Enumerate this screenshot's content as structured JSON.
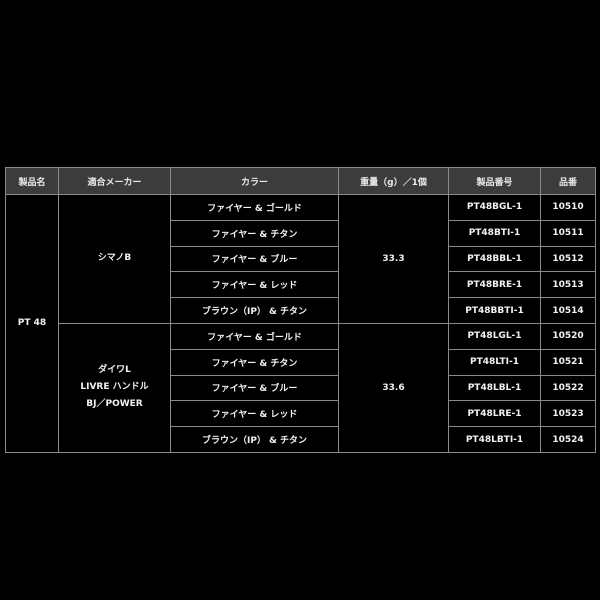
{
  "headers": [
    "製品名",
    "適合メーカー",
    "カラー",
    "重量（g）／1個",
    "製品番号",
    "品番"
  ],
  "product_name": "PT 48",
  "groups": [
    {
      "maker_lines": [
        "シマノB"
      ],
      "weight": "33.3",
      "rows": [
        {
          "color": "ファイヤー & ゴールド",
          "product_no": "PT48BGL-1",
          "part_no": "10510"
        },
        {
          "color": "ファイヤー & チタン",
          "product_no": "PT48BTI-1",
          "part_no": "10511"
        },
        {
          "color": "ファイヤー & ブルー",
          "product_no": "PT48BBL-1",
          "part_no": "10512"
        },
        {
          "color": "ファイヤー & レッド",
          "product_no": "PT48BRE-1",
          "part_no": "10513"
        },
        {
          "color": "ブラウン（IP） & チタン",
          "product_no": "PT48BBTI-1",
          "part_no": "10514"
        }
      ]
    },
    {
      "maker_lines": [
        "ダイワL",
        "LIVRE ハンドル",
        "BJ／POWER"
      ],
      "weight": "33.6",
      "rows": [
        {
          "color": "ファイヤー & ゴールド",
          "product_no": "PT48LGL-1",
          "part_no": "10520"
        },
        {
          "color": "ファイヤー & チタン",
          "product_no": "PT48LTI-1",
          "part_no": "10521"
        },
        {
          "color": "ファイヤー & ブルー",
          "product_no": "PT48LBL-1",
          "part_no": "10522"
        },
        {
          "color": "ファイヤー & レッド",
          "product_no": "PT48LRE-1",
          "part_no": "10523"
        },
        {
          "color": "ブラウン（IP） & チタン",
          "product_no": "PT48LBTI-1",
          "part_no": "10524"
        }
      ]
    }
  ]
}
